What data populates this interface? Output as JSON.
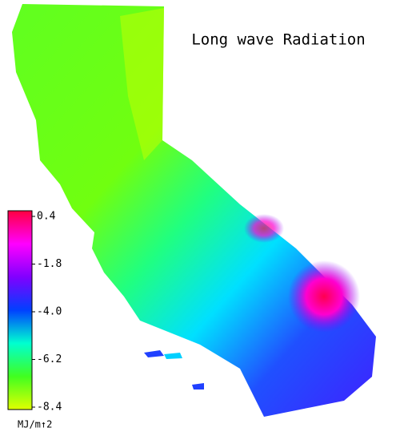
{
  "title": "Long wave Radiation",
  "colorbar": {
    "range": [
      -8.4,
      0.4
    ],
    "ticks": [
      0.4,
      -1.8,
      {
        "value": -4.0,
        "label": "-4.0"
      },
      -6.2,
      -8.4
    ],
    "colors": [
      "#e0ff00",
      "#40ff20",
      "#00ffd0",
      "#0040ff",
      "#8000ff",
      "#ff00ff",
      "#ff0040"
    ],
    "unit": "MJ/m↑2"
  }
}
